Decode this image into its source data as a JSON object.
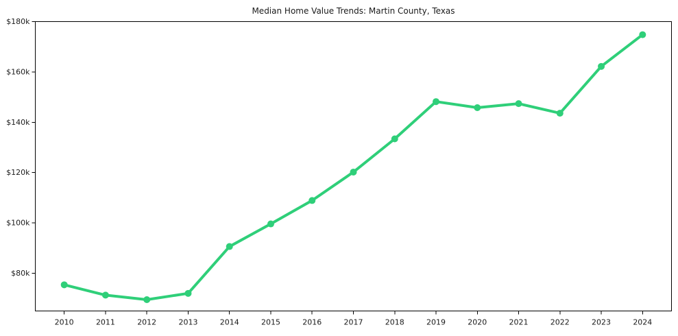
{
  "figure": {
    "background_color": "#ffffff",
    "axis_color": "#000000",
    "text_color": "#1a1a1a"
  },
  "chart_data": {
    "type": "line",
    "title": "Median Home Value Trends: Martin County, Texas",
    "xlabel": "",
    "ylabel": "",
    "grid": false,
    "legend": "none",
    "x": [
      2010,
      2011,
      2012,
      2013,
      2014,
      2015,
      2016,
      2017,
      2018,
      2019,
      2020,
      2021,
      2022,
      2023,
      2024
    ],
    "xtick_labels": [
      "2010",
      "2011",
      "2012",
      "2013",
      "2014",
      "2015",
      "2016",
      "2017",
      "2018",
      "2019",
      "2020",
      "2021",
      "2022",
      "2023",
      "2024"
    ],
    "series": [
      {
        "name": "Median Home Value",
        "color": "#2fcf79",
        "marker": "circle",
        "values": [
          75400,
          71300,
          69500,
          72000,
          90600,
          99600,
          108900,
          120200,
          133400,
          148200,
          145800,
          147400,
          143600,
          162200,
          174800
        ]
      }
    ],
    "xlim": [
      2009.3,
      2024.7
    ],
    "ylim": [
      65000,
      180000
    ],
    "yticks": [
      {
        "value": 80000,
        "label": "$80k"
      },
      {
        "value": 100000,
        "label": "$100k"
      },
      {
        "value": 120000,
        "label": "$120k"
      },
      {
        "value": 140000,
        "label": "$140k"
      },
      {
        "value": 160000,
        "label": "$160k"
      },
      {
        "value": 180000,
        "label": "$180k"
      }
    ]
  }
}
